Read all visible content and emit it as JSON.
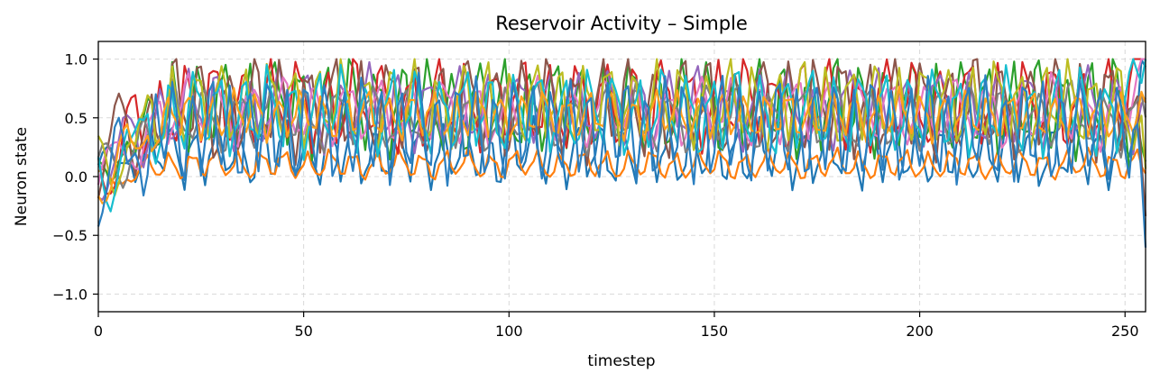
{
  "chart_data": {
    "type": "line",
    "title": "Reservoir Activity – Simple",
    "xlabel": "timestep",
    "ylabel": "Neuron state",
    "xlim": [
      0,
      255
    ],
    "ylim": [
      -1.15,
      1.15
    ],
    "x_ticks": [
      0,
      50,
      100,
      150,
      200,
      250
    ],
    "y_ticks": [
      -1.0,
      -0.5,
      0.0,
      0.5,
      1.0
    ],
    "x_tick_labels": [
      "0",
      "50",
      "100",
      "150",
      "200",
      "250"
    ],
    "y_tick_labels": [
      "−1.0",
      "−0.5",
      "0.0",
      "0.5",
      "1.0"
    ],
    "grid": true,
    "legend": "none",
    "num_timesteps": 256,
    "series": [
      {
        "color": "#1f77b4",
        "mean": 0.2,
        "amp": 0.22,
        "period": 5.5,
        "phase": 0.0,
        "init": 0.1,
        "init_amp": 0.3
      },
      {
        "color": "#ff7f0e",
        "mean": 0.1,
        "amp": 0.1,
        "period": 5.6,
        "phase": 1.0,
        "init": -0.05,
        "init_amp": 0.22
      },
      {
        "color": "#2ca02c",
        "mean": 0.6,
        "amp": 0.32,
        "period": 6.2,
        "phase": 2.0,
        "init": 0.0,
        "init_amp": 0.3
      },
      {
        "color": "#d62728",
        "mean": 0.62,
        "amp": 0.3,
        "period": 6.8,
        "phase": 0.5,
        "init": 0.1,
        "init_amp": 0.8
      },
      {
        "color": "#9467bd",
        "mean": 0.58,
        "amp": 0.26,
        "period": 7.3,
        "phase": 1.5,
        "init": 0.05,
        "init_amp": 0.6
      },
      {
        "color": "#8c564b",
        "mean": 0.6,
        "amp": 0.34,
        "period": 6.5,
        "phase": 2.5,
        "init": 0.2,
        "init_amp": 0.8
      },
      {
        "color": "#e377c2",
        "mean": 0.55,
        "amp": 0.22,
        "period": 7.8,
        "phase": 3.0,
        "init": 0.0,
        "init_amp": 0.5
      },
      {
        "color": "#7f7f7f",
        "mean": 0.5,
        "amp": 0.22,
        "period": 8.1,
        "phase": 0.2,
        "init": 0.0,
        "init_amp": 0.5
      },
      {
        "color": "#bcbd22",
        "mean": 0.62,
        "amp": 0.28,
        "period": 5.9,
        "phase": 1.2,
        "init": 0.0,
        "init_amp": 0.7
      },
      {
        "color": "#17becf",
        "mean": 0.55,
        "amp": 0.28,
        "period": 6.0,
        "phase": 2.2,
        "init": 0.0,
        "init_amp": 0.8
      },
      {
        "color": "#ff9f1c",
        "mean": 0.52,
        "amp": 0.16,
        "period": 5.4,
        "phase": 0.8,
        "init": 0.0,
        "init_amp": 0.6
      },
      {
        "color": "#2b7fc0",
        "mean": 0.4,
        "amp": 0.38,
        "period": 4.6,
        "phase": 1.7,
        "init": 0.0,
        "init_amp": 0.85
      }
    ]
  }
}
